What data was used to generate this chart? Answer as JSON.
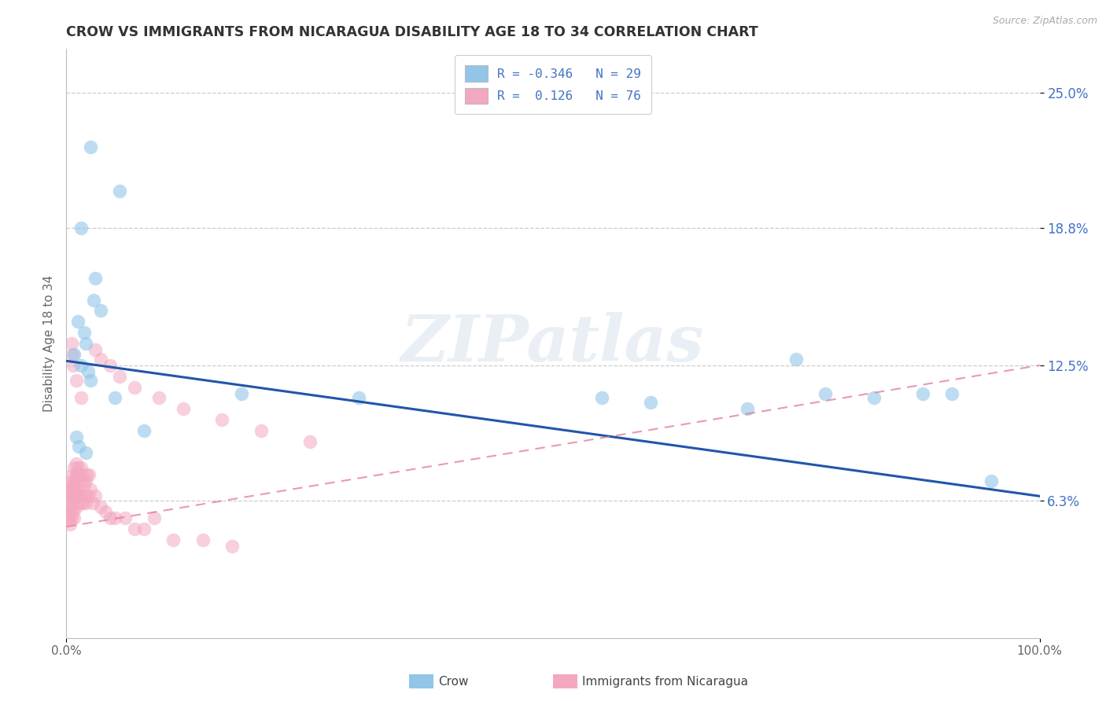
{
  "title": "CROW VS IMMIGRANTS FROM NICARAGUA DISABILITY AGE 18 TO 34 CORRELATION CHART",
  "source": "Source: ZipAtlas.com",
  "ylabel": "Disability Age 18 to 34",
  "xlim": [
    0,
    100
  ],
  "ylim": [
    0,
    27
  ],
  "ytick_vals": [
    6.3,
    12.5,
    18.8,
    25.0
  ],
  "ytick_labels": [
    "6.3%",
    "12.5%",
    "18.8%",
    "25.0%"
  ],
  "xtick_positions": [
    0,
    100
  ],
  "xtick_labels": [
    "0.0%",
    "100.0%"
  ],
  "crow_color": "#92c5e8",
  "nicaragua_color": "#f4a8c0",
  "trend_blue_color": "#2255aa",
  "trend_pink_color": "#e07898",
  "legend_label1": "Crow",
  "legend_label2": "Immigrants from Nicaragua",
  "watermark_text": "ZIPatlas",
  "blue_trend_x0": 0,
  "blue_trend_y0": 12.7,
  "blue_trend_x1": 100,
  "blue_trend_y1": 6.5,
  "pink_trend_x0": 0,
  "pink_trend_y0": 5.1,
  "pink_trend_x1": 100,
  "pink_trend_y1": 12.5,
  "crow_x": [
    2.5,
    5.5,
    1.5,
    3.0,
    2.8,
    3.5,
    1.2,
    1.8,
    2.0,
    0.8,
    1.5,
    2.2,
    2.5,
    18.0,
    55.0,
    75.0,
    78.0,
    83.0,
    88.0,
    91.0,
    95.0,
    60.0,
    70.0,
    30.0,
    5.0,
    8.0,
    1.0,
    1.3,
    2.0
  ],
  "crow_y": [
    22.5,
    20.5,
    18.8,
    16.5,
    15.5,
    15.0,
    14.5,
    14.0,
    13.5,
    13.0,
    12.5,
    12.2,
    11.8,
    11.2,
    11.0,
    12.8,
    11.2,
    11.0,
    11.2,
    11.2,
    7.2,
    10.8,
    10.5,
    11.0,
    11.0,
    9.5,
    9.2,
    8.8,
    8.5
  ],
  "nic_x": [
    0.2,
    0.2,
    0.3,
    0.3,
    0.3,
    0.4,
    0.4,
    0.4,
    0.4,
    0.5,
    0.5,
    0.5,
    0.6,
    0.6,
    0.6,
    0.7,
    0.7,
    0.7,
    0.8,
    0.8,
    0.8,
    0.8,
    0.9,
    0.9,
    1.0,
    1.0,
    1.0,
    1.0,
    1.1,
    1.1,
    1.2,
    1.2,
    1.3,
    1.3,
    1.4,
    1.4,
    1.5,
    1.5,
    1.6,
    1.7,
    1.8,
    1.9,
    2.0,
    2.0,
    2.1,
    2.2,
    2.3,
    2.5,
    2.7,
    3.0,
    3.5,
    4.0,
    4.5,
    5.0,
    6.0,
    7.0,
    8.0,
    9.0,
    11.0,
    14.0,
    17.0,
    3.0,
    3.5,
    4.5,
    5.5,
    7.0,
    9.5,
    12.0,
    16.0,
    20.0,
    25.0,
    0.5,
    0.6,
    0.7,
    1.0,
    1.5
  ],
  "nic_y": [
    6.2,
    5.5,
    6.8,
    6.0,
    5.5,
    7.0,
    6.5,
    5.8,
    5.2,
    7.2,
    6.5,
    5.5,
    7.5,
    6.8,
    6.0,
    7.0,
    6.5,
    5.8,
    7.8,
    7.0,
    6.5,
    5.5,
    7.2,
    6.5,
    8.0,
    7.5,
    6.8,
    6.0,
    7.5,
    6.5,
    7.8,
    6.8,
    7.5,
    6.5,
    7.2,
    6.2,
    7.8,
    6.5,
    7.5,
    6.2,
    7.0,
    6.5,
    7.2,
    6.2,
    7.5,
    6.5,
    7.5,
    6.8,
    6.2,
    6.5,
    6.0,
    5.8,
    5.5,
    5.5,
    5.5,
    5.0,
    5.0,
    5.5,
    4.5,
    4.5,
    4.2,
    13.2,
    12.8,
    12.5,
    12.0,
    11.5,
    11.0,
    10.5,
    10.0,
    9.5,
    9.0,
    13.5,
    13.0,
    12.5,
    11.8,
    11.0
  ]
}
